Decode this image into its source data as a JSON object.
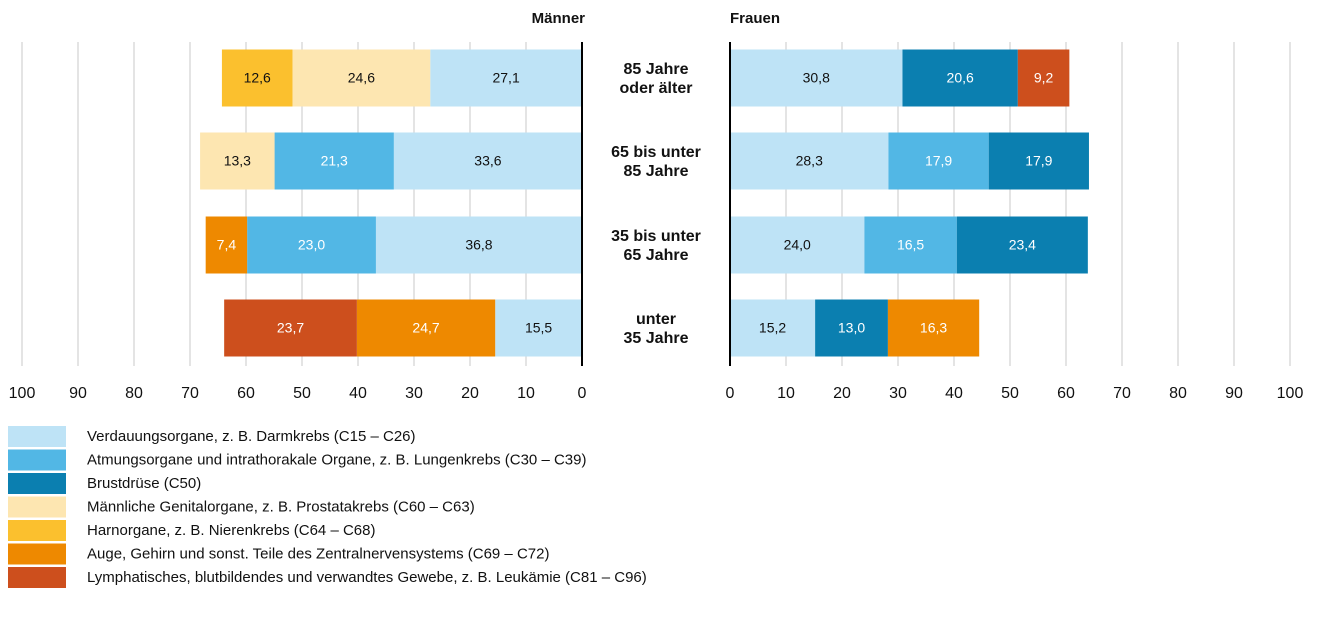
{
  "chart_data": {
    "type": "butterfly-bar",
    "categories": [
      "85 Jahre\noder älter",
      "65 bis unter\n85 Jahre",
      "35 bis unter\n65 Jahre",
      "unter\n35 Jahre"
    ],
    "series": [
      {
        "name": "Verdauungsorgane, z. B. Darmkrebs (C15 – C26)",
        "color": "#bee3f6"
      },
      {
        "name": "Atmungsorgane und intrathorakale Organe, z. B. Lungenkrebs (C30 – C39)",
        "color": "#52b7e5"
      },
      {
        "name": "Brustdrüse (C50)",
        "color": "#0b7fb0"
      },
      {
        "name": "Männliche Genitalorgane, z. B. Prostatakrebs (C60 – C63)",
        "color": "#fde6b1"
      },
      {
        "name": "Harnorgane, z. B. Nierenkrebs (C64 – C68)",
        "color": "#fbc02e"
      },
      {
        "name": "Auge, Gehirn und sonst. Teile des Zentralnervensystems (C69 – C72)",
        "color": "#ee8900"
      },
      {
        "name": "Lymphatisches, blutbildendes und verwandtes Gewebe, z. B. Leukämie (C81 – C96)",
        "color": "#cd4f1d"
      }
    ],
    "panels": [
      {
        "title": "Männer",
        "xlim": [
          100,
          0
        ],
        "xticks": [
          100,
          90,
          80,
          70,
          60,
          50,
          40,
          30,
          20,
          10,
          0
        ],
        "values": [
          [
            27.1,
            33.6,
            36.8,
            15.5
          ],
          [
            null,
            21.3,
            23.0,
            null
          ],
          [
            null,
            null,
            null,
            null
          ],
          [
            24.6,
            13.3,
            null,
            null
          ],
          [
            12.6,
            null,
            null,
            null
          ],
          [
            null,
            null,
            7.4,
            24.7
          ],
          [
            null,
            null,
            null,
            23.7
          ]
        ],
        "value_labels": [
          [
            "27,1",
            "33,6",
            "36,8",
            "15,5"
          ],
          [
            null,
            "21,3",
            "23,0",
            null
          ],
          [
            null,
            null,
            null,
            null
          ],
          [
            "24,6",
            "13,3",
            null,
            null
          ],
          [
            "12,6",
            null,
            null,
            null
          ],
          [
            null,
            null,
            "7,4",
            "24,7"
          ],
          [
            null,
            null,
            null,
            "23,7"
          ]
        ]
      },
      {
        "title": "Frauen",
        "xlim": [
          0,
          100
        ],
        "xticks": [
          0,
          10,
          20,
          30,
          40,
          50,
          60,
          70,
          80,
          90,
          100
        ],
        "values": [
          [
            30.8,
            28.3,
            24.0,
            15.2
          ],
          [
            null,
            17.9,
            16.5,
            null
          ],
          [
            20.6,
            17.9,
            23.4,
            13.0
          ],
          [
            null,
            null,
            null,
            null
          ],
          [
            null,
            null,
            null,
            null
          ],
          [
            null,
            null,
            null,
            16.3
          ],
          [
            9.2,
            null,
            null,
            null
          ]
        ],
        "value_labels": [
          [
            "30,8",
            "28,3",
            "24,0",
            "15,2"
          ],
          [
            null,
            "17,9",
            "16,5",
            null
          ],
          [
            "20,6",
            "17,9",
            "23,4",
            "13,0"
          ],
          [
            null,
            null,
            null,
            null
          ],
          [
            null,
            null,
            null,
            null
          ],
          [
            null,
            null,
            null,
            "16,3"
          ],
          [
            "9,2",
            null,
            null,
            null
          ]
        ]
      }
    ]
  }
}
